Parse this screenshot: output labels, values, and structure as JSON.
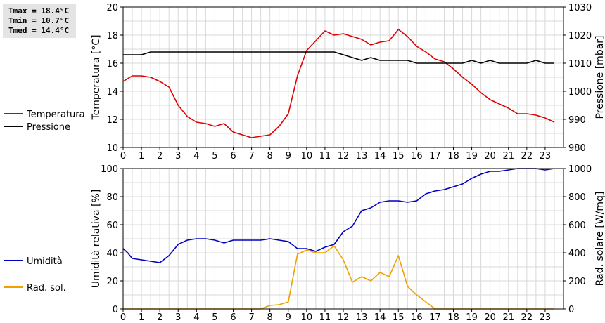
{
  "stats": {
    "tmax": "Tmax = 18.4°C",
    "tmin": "Tmin = 10.7°C",
    "tmed": "Tmed = 14.4°C"
  },
  "chart_data": [
    {
      "type": "line",
      "xlabel": "",
      "xlim": [
        0,
        24
      ],
      "xticks": [
        0,
        1,
        2,
        3,
        4,
        5,
        6,
        7,
        8,
        9,
        10,
        11,
        12,
        13,
        14,
        15,
        16,
        17,
        18,
        19,
        20,
        21,
        22,
        23
      ],
      "ylabel_left": "Temperatura [°C]",
      "ylim_left": [
        10,
        20
      ],
      "yticks_left": [
        10,
        12,
        14,
        16,
        18,
        20
      ],
      "ylabel_right": "Pressione [mbar]",
      "ylim_right": [
        980,
        1030
      ],
      "yticks_right": [
        980,
        990,
        1000,
        1010,
        1020,
        1030
      ],
      "grid": true,
      "legend_position": "left",
      "series": [
        {
          "name": "Temperatura",
          "axis": "left",
          "color": "#e00000",
          "x": [
            0,
            0.25,
            0.5,
            1,
            1.5,
            2,
            2.5,
            3,
            3.5,
            4,
            4.5,
            5,
            5.5,
            6,
            6.5,
            7,
            7.5,
            8,
            8.5,
            9,
            9.5,
            10,
            10.5,
            11,
            11.5,
            12,
            12.5,
            13,
            13.5,
            14,
            14.5,
            15,
            15.5,
            16,
            16.5,
            17,
            17.5,
            18,
            18.5,
            19,
            19.5,
            20,
            20.5,
            21,
            21.5,
            22,
            22.5,
            23,
            23.5
          ],
          "values": [
            14.7,
            14.9,
            15.1,
            15.1,
            15.0,
            14.7,
            14.3,
            13.0,
            12.2,
            11.8,
            11.7,
            11.5,
            11.7,
            11.1,
            10.9,
            10.7,
            10.8,
            10.9,
            11.5,
            12.4,
            15.1,
            16.9,
            17.6,
            18.3,
            18.0,
            18.1,
            17.9,
            17.7,
            17.3,
            17.5,
            17.6,
            18.4,
            17.9,
            17.2,
            16.8,
            16.3,
            16.1,
            15.6,
            15.0,
            14.5,
            13.9,
            13.4,
            13.1,
            12.8,
            12.4,
            12.4,
            12.3,
            12.1,
            11.8
          ]
        },
        {
          "name": "Pressione",
          "axis": "right",
          "color": "#000000",
          "x": [
            0,
            1,
            1.5,
            2,
            3,
            4,
            5,
            6,
            7,
            8,
            9,
            10,
            11,
            11.5,
            12,
            12.5,
            13,
            13.5,
            14,
            14.5,
            15,
            15.5,
            16,
            16.5,
            17,
            17.5,
            18,
            18.5,
            19,
            19.5,
            20,
            20.5,
            21,
            21.5,
            22,
            22.5,
            23,
            23.5
          ],
          "values": [
            1013,
            1013,
            1014,
            1014,
            1014,
            1014,
            1014,
            1014,
            1014,
            1014,
            1014,
            1014,
            1014,
            1014,
            1013,
            1012,
            1011,
            1012,
            1011,
            1011,
            1011,
            1011,
            1010,
            1010,
            1010,
            1010,
            1010,
            1010,
            1011,
            1010,
            1011,
            1010,
            1010,
            1010,
            1010,
            1011,
            1010,
            1010
          ]
        }
      ]
    },
    {
      "type": "line",
      "xlabel": "",
      "xlim": [
        0,
        24
      ],
      "xticks": [
        0,
        1,
        2,
        3,
        4,
        5,
        6,
        7,
        8,
        9,
        10,
        11,
        12,
        13,
        14,
        15,
        16,
        17,
        18,
        19,
        20,
        21,
        22,
        23
      ],
      "ylabel_left": "Umidità relativa [%]",
      "ylim_left": [
        0,
        100
      ],
      "yticks_left": [
        0,
        20,
        40,
        60,
        80,
        100
      ],
      "ylabel_right": "Rad. solare [W/mq]",
      "ylim_right": [
        0,
        1000
      ],
      "yticks_right": [
        0,
        200,
        400,
        600,
        800,
        1000
      ],
      "grid": true,
      "legend_position": "left",
      "series": [
        {
          "name": "Umidità",
          "axis": "left",
          "color": "#0000c0",
          "x": [
            0,
            0.25,
            0.5,
            1,
            1.5,
            2,
            2.5,
            3,
            3.5,
            4,
            4.5,
            5,
            5.5,
            6,
            6.5,
            7,
            7.5,
            8,
            8.5,
            9,
            9.5,
            10,
            10.5,
            11,
            11.5,
            12,
            12.5,
            13,
            13.5,
            14,
            14.5,
            15,
            15.5,
            16,
            16.5,
            17,
            17.5,
            18,
            18.5,
            19,
            19.5,
            20,
            20.5,
            21,
            21.5,
            22,
            22.5,
            23,
            23.5
          ],
          "values": [
            43,
            40,
            36,
            35,
            34,
            33,
            38,
            46,
            49,
            50,
            50,
            49,
            47,
            49,
            49,
            49,
            49,
            50,
            49,
            48,
            43,
            43,
            41,
            44,
            46,
            55,
            59,
            70,
            72,
            76,
            77,
            77,
            76,
            77,
            82,
            84,
            85,
            87,
            89,
            93,
            96,
            98,
            98,
            99,
            100,
            100,
            100,
            99,
            100
          ]
        },
        {
          "name": "Rad. sol.",
          "axis": "right",
          "color": "#f0a000",
          "x": [
            0,
            1,
            2,
            3,
            4,
            5,
            6,
            7,
            7.5,
            8,
            8.5,
            9,
            9.5,
            10,
            10.5,
            11,
            11.5,
            12,
            12.5,
            13,
            13.5,
            14,
            14.5,
            15,
            15.5,
            16,
            16.5,
            17,
            18,
            19,
            20,
            21,
            22,
            23,
            23.5
          ],
          "values": [
            0,
            0,
            0,
            0,
            0,
            0,
            0,
            0,
            0,
            25,
            30,
            50,
            390,
            420,
            400,
            400,
            450,
            350,
            190,
            230,
            200,
            260,
            230,
            380,
            160,
            100,
            50,
            0,
            0,
            0,
            0,
            0,
            0,
            0,
            0
          ]
        }
      ]
    }
  ]
}
